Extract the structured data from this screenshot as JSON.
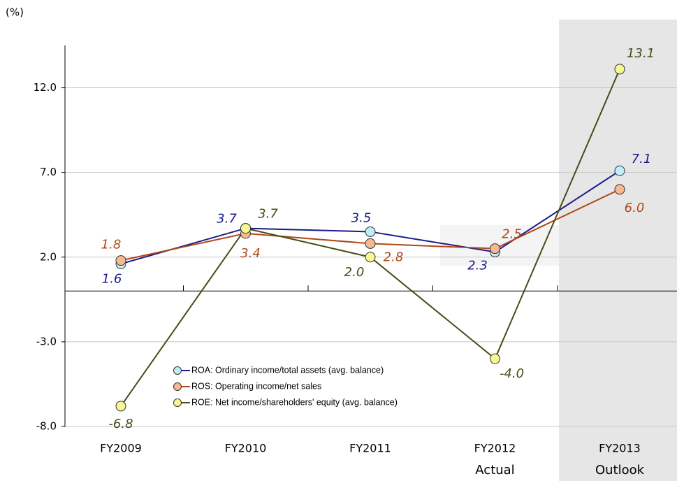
{
  "chart_data": {
    "type": "line",
    "y_axis_label": "(%)",
    "categories": [
      "FY2009",
      "FY2010",
      "FY2011",
      "FY2012",
      "FY2013"
    ],
    "category_sublabels": [
      null,
      null,
      null,
      "Actual",
      "Outlook"
    ],
    "ylim": [
      -8,
      14.5
    ],
    "yticks": [
      {
        "value": -8,
        "label": "-8.0"
      },
      {
        "value": -3,
        "label": "-3.0"
      },
      {
        "value": 2,
        "label": "2.0"
      },
      {
        "value": 7,
        "label": "7.0"
      },
      {
        "value": 12,
        "label": "12.0"
      }
    ],
    "grid": true,
    "series": [
      {
        "name": "ROA: Ordinary income/total assets (avg. balance)",
        "color": "#1a1a8c",
        "marker_color": "#bfeef8",
        "values": [
          1.6,
          3.7,
          3.5,
          2.3,
          7.1
        ],
        "value_labels": [
          "1.6",
          "3.7",
          "3.5",
          "2.3",
          "7.1"
        ]
      },
      {
        "name": "ROS: Operating income/net sales",
        "color": "#b04818",
        "marker_color": "#f8b890",
        "values": [
          1.8,
          3.4,
          2.8,
          2.5,
          6.0
        ],
        "value_labels": [
          "1.8",
          "3.4",
          "2.8",
          "2.5",
          "6.0"
        ]
      },
      {
        "name": "ROE: Net income/shareholders' equity (avg. balance)",
        "color": "#4a4a18",
        "marker_color": "#f8f890",
        "values": [
          -6.8,
          3.7,
          2.0,
          -4.0,
          13.1
        ],
        "value_labels": [
          "-6.8",
          "3.7",
          "2.0",
          "-4.0",
          "13.1"
        ]
      }
    ]
  }
}
